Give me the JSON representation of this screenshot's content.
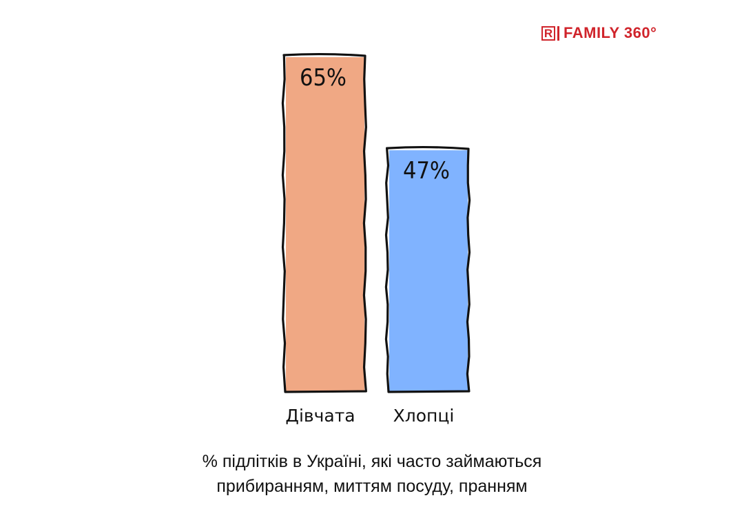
{
  "logo": {
    "mark": "R",
    "text": "FAMILY 360°"
  },
  "chart_data": {
    "type": "bar",
    "categories": [
      "Дівчата",
      "Хлопці"
    ],
    "values": [
      65,
      47
    ],
    "value_labels": [
      "65%",
      "47%"
    ],
    "colors": [
      "#f0a884",
      "#80b3ff"
    ],
    "unit": "%",
    "title": "",
    "xlabel": "",
    "ylabel": "",
    "ylim": [
      0,
      65
    ],
    "grid": false,
    "legend": "none"
  },
  "caption": {
    "line1": "% підлітків в Україні, які часто займаються",
    "line2": "прибиранням, миттям посуду, пранням"
  }
}
